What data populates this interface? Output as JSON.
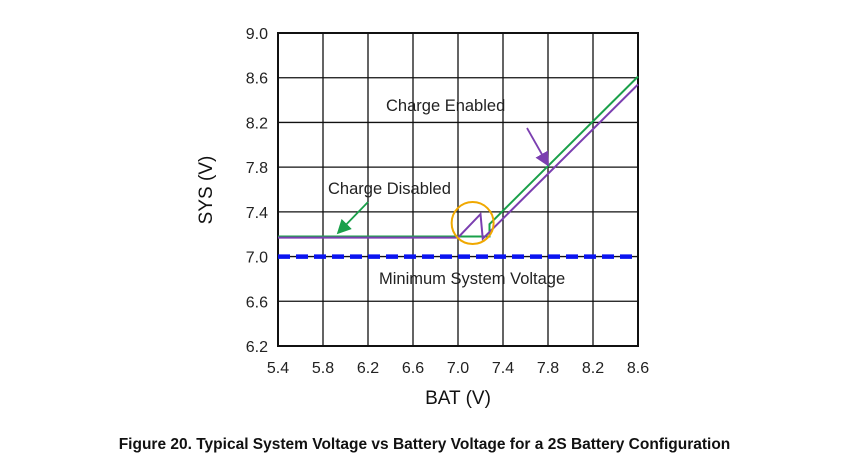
{
  "chart_data": {
    "type": "line",
    "caption": "Figure 20.  Typical System Voltage vs Battery Voltage for a 2S Battery Configuration",
    "xlabel": "BAT (V)",
    "ylabel": "SYS (V)",
    "xlim": [
      5.4,
      8.6
    ],
    "ylim": [
      6.2,
      9.0
    ],
    "xticks": [
      "5.4",
      "5.8",
      "6.2",
      "6.6",
      "7.0",
      "7.4",
      "7.8",
      "8.2",
      "8.6"
    ],
    "yticks": [
      "9.0",
      "8.6",
      "8.2",
      "7.8",
      "7.4",
      "7.0",
      "6.6",
      "6.2"
    ],
    "grid": true,
    "series": [
      {
        "name": "Charge Disabled",
        "color": "#1aa04a",
        "x": [
          5.4,
          7.28,
          7.28,
          8.6
        ],
        "y": [
          7.18,
          7.18,
          7.29,
          8.61
        ]
      },
      {
        "name": "Charge Enabled",
        "color": "#7b3fb0",
        "x": [
          5.4,
          7.0,
          7.2,
          7.22,
          8.6
        ],
        "y": [
          7.17,
          7.17,
          7.38,
          7.16,
          8.54
        ]
      },
      {
        "name": "Minimum System Voltage",
        "color": "#0a14f0",
        "style": "dashed",
        "x": [
          5.4,
          8.6
        ],
        "y": [
          7.0,
          7.0
        ]
      }
    ],
    "annotations": [
      {
        "text": "Charge Enabled",
        "color": "#7b3fb0"
      },
      {
        "text": "Charge Disabled",
        "color": "#1aa04a"
      },
      {
        "text": "Minimum System Voltage",
        "color": "#0a14f0"
      }
    ],
    "highlight_circle": {
      "x": 7.13,
      "y": 7.3,
      "color": "#f0a800"
    }
  }
}
